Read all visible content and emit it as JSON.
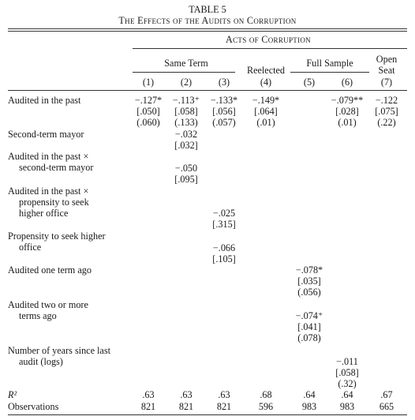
{
  "table": {
    "number": "TABLE 5",
    "caption": "The Effects of the Audits on Corruption",
    "spanner": "Acts of Corruption",
    "groups": {
      "same_term": "Same Term",
      "reelected": "Reelected",
      "full_sample": "Full Sample",
      "open_seat_1": "Open",
      "open_seat_2": "Seat"
    },
    "columns": [
      "(1)",
      "(2)",
      "(3)",
      "(4)",
      "(5)",
      "(6)",
      "(7)"
    ]
  },
  "rows": {
    "audited": {
      "label": "Audited in the past",
      "coef": [
        "−.127*",
        "−.113⁺",
        "−.133*",
        "−.149*",
        "",
        "−.079**",
        "−.122"
      ],
      "se": [
        "[.050]",
        "[.058]",
        "[.056]",
        "[.064]",
        "",
        "[.028]",
        "[.075]"
      ],
      "pv": [
        "(.060)",
        "(.133)",
        "(.057)",
        "(.01)",
        "",
        "(.01)",
        "(.22)"
      ]
    },
    "second_term": {
      "label": "Second-term mayor",
      "coef": "−.032",
      "se": "[.032]"
    },
    "audited_x_second": {
      "label_1": "Audited in the past ×",
      "label_2": "second-term mayor",
      "coef": "−.050",
      "se": "[.095]"
    },
    "audited_x_propensity": {
      "label_1": "Audited in the past ×",
      "label_2": "propensity to seek",
      "label_3": "higher office",
      "coef": "−.025",
      "se": "[.315]"
    },
    "propensity": {
      "label_1": "Propensity to seek higher",
      "label_2": "office",
      "coef": "−.066",
      "se": "[.105]"
    },
    "one_term": {
      "label": "Audited one term ago",
      "coef": "−.078*",
      "se": "[.035]",
      "pv": "(.056)"
    },
    "two_terms": {
      "label_1": "Audited two or more",
      "label_2": "terms ago",
      "coef": "−.074⁺",
      "se": "[.041]",
      "pv": "(.078)"
    },
    "years_since": {
      "label_1": "Number of years since last",
      "label_2": "audit (logs)",
      "coef": "−.011",
      "se": "[.058]",
      "pv": "(.32)"
    },
    "r2": {
      "label": "R²",
      "values": [
        ".63",
        ".63",
        ".63",
        ".68",
        ".64",
        ".64",
        ".67"
      ]
    },
    "obs": {
      "label": "Observations",
      "values": [
        "821",
        "821",
        "821",
        "596",
        "983",
        "983",
        "665"
      ]
    }
  }
}
